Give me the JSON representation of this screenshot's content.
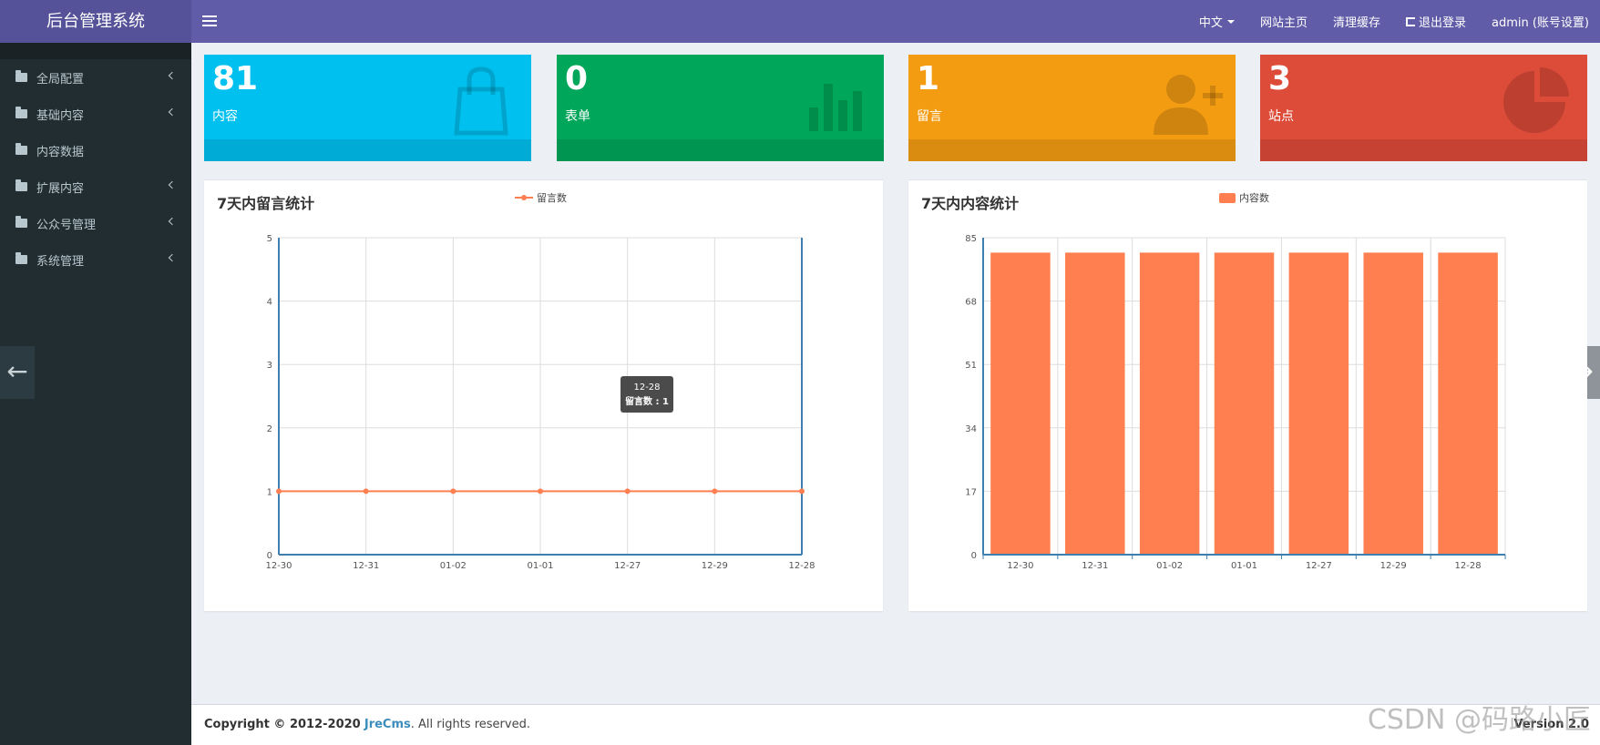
{
  "app": {
    "title": "后台管理系统"
  },
  "topnav": {
    "language": "中文",
    "home": "网站主页",
    "clear_cache": "清理缓存",
    "logout": "退出登录",
    "account": "admin (账号设置)"
  },
  "sidebar": {
    "items": [
      {
        "label": "全局配置",
        "has_children": true
      },
      {
        "label": "基础内容",
        "has_children": true
      },
      {
        "label": "内容数据",
        "has_children": false
      },
      {
        "label": "扩展内容",
        "has_children": true
      },
      {
        "label": "公众号管理",
        "has_children": true
      },
      {
        "label": "系统管理",
        "has_children": true
      }
    ]
  },
  "stats": [
    {
      "value": "81",
      "label": "内容",
      "color": "#00c0ef",
      "icon": "shopping-bag-icon"
    },
    {
      "value": "0",
      "label": "表单",
      "color": "#00a65a",
      "icon": "bar-chart-icon"
    },
    {
      "value": "1",
      "label": "留言",
      "color": "#f39c12",
      "icon": "user-plus-icon"
    },
    {
      "value": "3",
      "label": "站点",
      "color": "#dd4b39",
      "icon": "pie-chart-icon"
    }
  ],
  "panels": {
    "left": {
      "title": "7天内留言统计"
    },
    "right": {
      "title": "7天内内容统计"
    }
  },
  "tooltip": {
    "category": "12-28",
    "text": "留言数 : 1"
  },
  "chart_data": [
    {
      "type": "line",
      "title": "7天内留言统计",
      "categories": [
        "12-30",
        "12-31",
        "01-02",
        "01-01",
        "12-27",
        "12-29",
        "12-28"
      ],
      "series": [
        {
          "name": "留言数",
          "values": [
            1,
            1,
            1,
            1,
            1,
            1,
            1
          ],
          "color": "#ff7f50"
        }
      ],
      "ylim": [
        0,
        5
      ],
      "yticks": [
        0,
        1,
        2,
        3,
        4,
        5
      ],
      "grid": true,
      "legend": "top-center"
    },
    {
      "type": "bar",
      "title": "7天内内容统计",
      "categories": [
        "12-30",
        "12-31",
        "01-02",
        "01-01",
        "12-27",
        "12-29",
        "12-28"
      ],
      "series": [
        {
          "name": "内容数",
          "values": [
            81,
            81,
            81,
            81,
            81,
            81,
            81
          ],
          "color": "#ff7f50"
        }
      ],
      "ylim": [
        0,
        85
      ],
      "yticks": [
        0,
        17,
        34,
        51,
        68,
        85
      ],
      "grid": true,
      "legend": "top-center"
    }
  ],
  "footer": {
    "copyright_prefix": "Copyright © 2012-2020",
    "brand": "JreCms",
    "suffix": ". All rights reserved.",
    "version": "Version 2.0"
  },
  "watermark": "CSDN @码路小匠"
}
